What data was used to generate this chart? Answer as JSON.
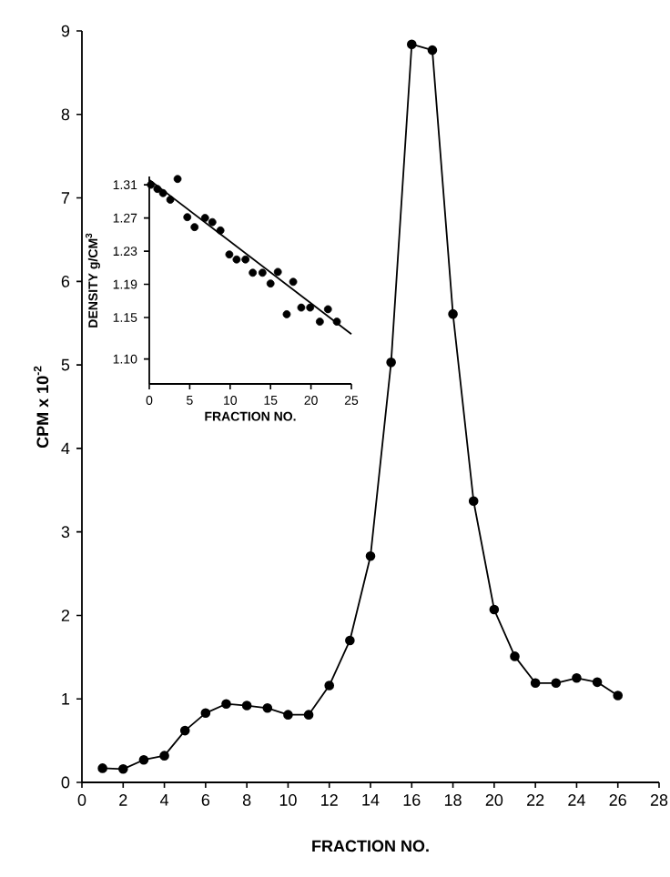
{
  "chart_data": [
    {
      "type": "line",
      "xlabel": "FRACTION NO.",
      "ylabel": "CPM x 10$^{-2}$",
      "marker": "circle",
      "line_style": "solid",
      "color": "#000000",
      "x": [
        1,
        2,
        3,
        4,
        5,
        6,
        7,
        8,
        9,
        10,
        11,
        12,
        13,
        14,
        15,
        16,
        17,
        18,
        19,
        20,
        21,
        22,
        23,
        24,
        25,
        26
      ],
      "values": [
        0.17,
        0.16,
        0.27,
        0.32,
        0.62,
        0.83,
        0.94,
        0.92,
        0.89,
        0.81,
        0.81,
        1.16,
        1.7,
        2.71,
        5.03,
        8.84,
        8.77,
        5.61,
        3.37,
        2.07,
        1.51,
        1.19,
        1.19,
        1.25,
        1.2,
        1.04
      ],
      "xlim": [
        0,
        28
      ],
      "ylim": [
        0,
        9
      ],
      "xticks": [
        0,
        2,
        4,
        6,
        8,
        10,
        12,
        14,
        16,
        18,
        20,
        22,
        24,
        26,
        28
      ],
      "yticks": [
        0,
        1,
        2,
        3,
        4,
        5,
        6,
        7,
        8,
        9
      ]
    },
    {
      "type": "scatter",
      "xlabel": "FRACTION NO.",
      "ylabel": "DENSITY g/CM$^{3}$",
      "series": [
        {
          "type": "scatter",
          "marker": "circle",
          "color": "#000000",
          "x": [
            0.2,
            1.0,
            1.7,
            2.6,
            3.5,
            4.7,
            5.6,
            6.9,
            7.8,
            8.8,
            9.9,
            10.8,
            11.9,
            12.8,
            14.0,
            15.0,
            15.9,
            17.0,
            17.8,
            18.8,
            19.9,
            21.1,
            22.1,
            23.2
          ],
          "values": [
            1.31,
            1.305,
            1.3,
            1.292,
            1.317,
            1.271,
            1.259,
            1.27,
            1.265,
            1.255,
            1.226,
            1.22,
            1.22,
            1.204,
            1.204,
            1.191,
            1.205,
            1.154,
            1.193,
            1.162,
            1.162,
            1.145,
            1.16,
            1.145
          ]
        },
        {
          "type": "line",
          "marker": "none",
          "color": "#000000",
          "x": [
            0,
            25
          ],
          "values": [
            1.316,
            1.13
          ]
        }
      ],
      "xlim": [
        0,
        25
      ],
      "ylim": [
        1.07,
        1.32
      ],
      "xticks": [
        0,
        5,
        10,
        15,
        20,
        25
      ],
      "yticks": [
        1.31,
        1.27,
        1.23,
        1.19,
        1.15,
        {
          "value": 1.1,
          "label": "1.10"
        }
      ]
    }
  ]
}
